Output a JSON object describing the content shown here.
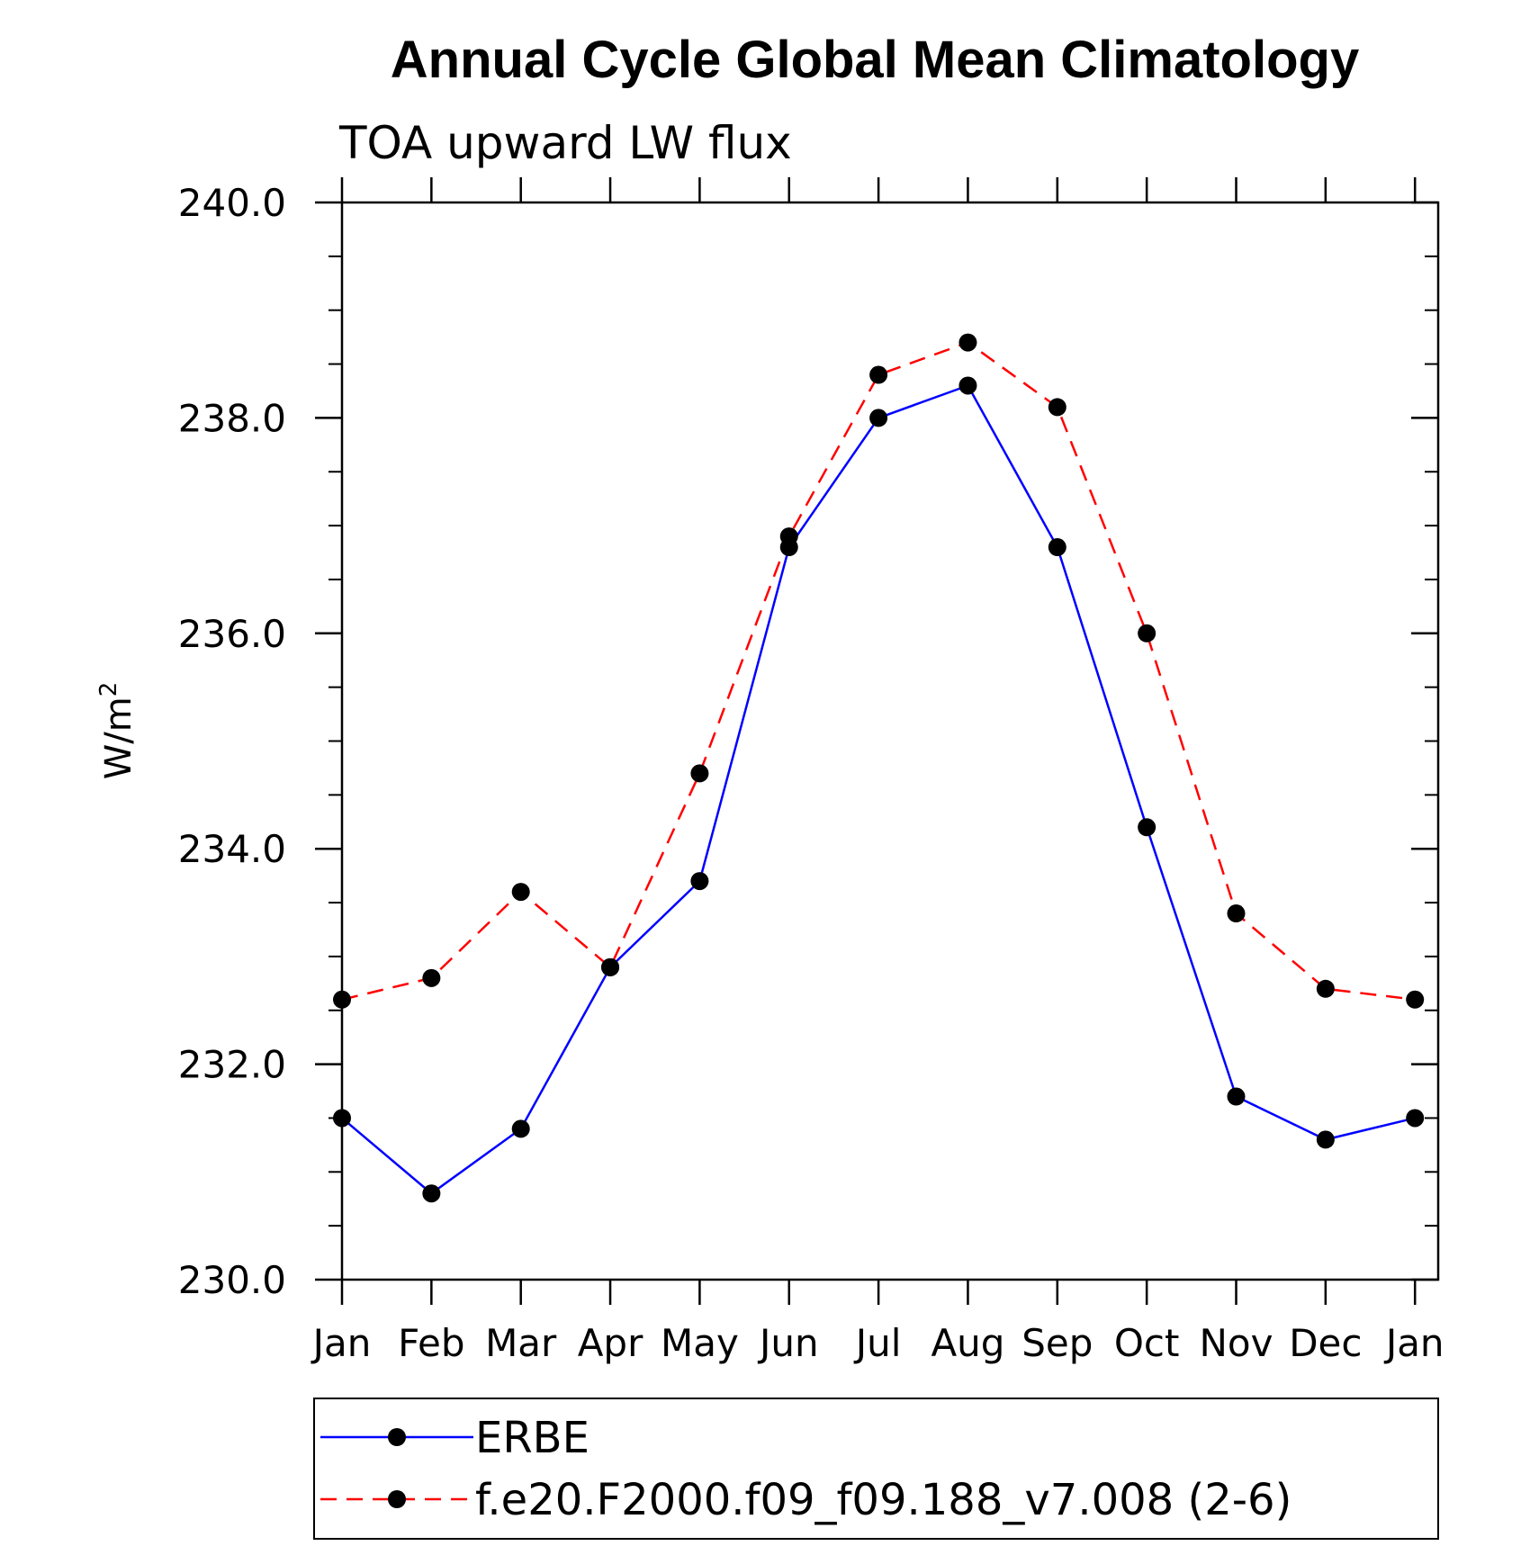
{
  "chart_data": {
    "type": "line",
    "title": "Annual Cycle Global Mean Climatology",
    "subtitle": "TOA upward LW flux",
    "ylabel": "W/m",
    "ylabel_sup": "2",
    "xlabel": "",
    "categories": [
      "Jan",
      "Feb",
      "Mar",
      "Apr",
      "May",
      "Jun",
      "Jul",
      "Aug",
      "Sep",
      "Oct",
      "Nov",
      "Dec",
      "Jan"
    ],
    "ylim": [
      230.0,
      240.0
    ],
    "yticks": [
      "230.0",
      "232.0",
      "234.0",
      "236.0",
      "238.0",
      "240.0"
    ],
    "grid": false,
    "legend_position": "bottom",
    "series": [
      {
        "name": "ERBE",
        "color": "#0000ff",
        "dash": "solid",
        "marker": "filled-circle",
        "values": [
          231.5,
          230.8,
          231.4,
          232.9,
          233.7,
          236.8,
          238.0,
          238.3,
          236.8,
          234.2,
          231.7,
          231.3,
          231.5
        ]
      },
      {
        "name": "f.e20.F2000.f09_f09.188_v7.008 (2-6)",
        "color": "#ff0000",
        "dash": "dashed",
        "marker": "filled-circle",
        "values": [
          232.6,
          232.8,
          233.6,
          232.9,
          234.7,
          236.9,
          238.4,
          238.7,
          238.1,
          236.0,
          233.4,
          232.7,
          232.6
        ]
      }
    ]
  }
}
